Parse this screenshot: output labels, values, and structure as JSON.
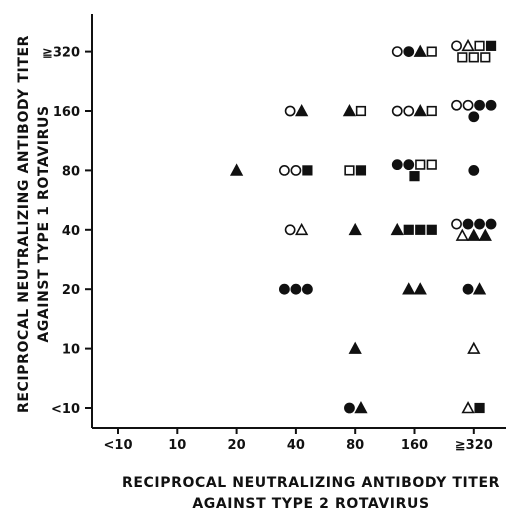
{
  "chart_data": {
    "type": "scatter",
    "title": "",
    "xlabel_lines": [
      "RECIPROCAL NEUTRALIZING ANTIBODY TITER",
      "AGAINST TYPE 2 ROTAVIRUS"
    ],
    "ylabel_lines": [
      "RECIPROCAL NEUTRALIZING ANTIBODY TITER",
      "AGAINST TYPE 1 ROTAVIRUS"
    ],
    "x_categories": [
      "<10",
      "10",
      "20",
      "40",
      "80",
      "160",
      "≧320"
    ],
    "y_categories": [
      "<10",
      "10",
      "20",
      "40",
      "80",
      "160",
      "≧320"
    ],
    "x_scale": "log2 ordinal (two-fold dilution steps)",
    "y_scale": "log2 ordinal (two-fold dilution steps)",
    "grid": false,
    "legend": "none",
    "marker_key": {
      "open-circle": "○",
      "filled-circle": "●",
      "open-triangle": "△",
      "filled-triangle": "▲",
      "open-square": "□",
      "filled-square": "■"
    },
    "points": [
      {
        "x": "20",
        "y": "80",
        "marker": "filled-triangle"
      },
      {
        "x": "40",
        "y": "160",
        "marker": "open-circle"
      },
      {
        "x": "40",
        "y": "160",
        "marker": "filled-triangle"
      },
      {
        "x": "40",
        "y": "80",
        "marker": "open-circle"
      },
      {
        "x": "40",
        "y": "80",
        "marker": "open-circle"
      },
      {
        "x": "40",
        "y": "80",
        "marker": "filled-square"
      },
      {
        "x": "40",
        "y": "40",
        "marker": "open-circle"
      },
      {
        "x": "40",
        "y": "40",
        "marker": "open-triangle"
      },
      {
        "x": "40",
        "y": "20",
        "marker": "filled-circle"
      },
      {
        "x": "40",
        "y": "20",
        "marker": "filled-circle"
      },
      {
        "x": "40",
        "y": "20",
        "marker": "filled-circle"
      },
      {
        "x": "80",
        "y": "160",
        "marker": "filled-triangle"
      },
      {
        "x": "80",
        "y": "160",
        "marker": "open-square"
      },
      {
        "x": "80",
        "y": "80",
        "marker": "open-square"
      },
      {
        "x": "80",
        "y": "80",
        "marker": "filled-square"
      },
      {
        "x": "80",
        "y": "40",
        "marker": "filled-triangle"
      },
      {
        "x": "80",
        "y": "10",
        "marker": "filled-triangle"
      },
      {
        "x": "80",
        "y": "<10",
        "marker": "filled-circle"
      },
      {
        "x": "80",
        "y": "<10",
        "marker": "filled-triangle"
      },
      {
        "x": "160",
        "y": "≧320",
        "marker": "open-circle"
      },
      {
        "x": "160",
        "y": "≧320",
        "marker": "filled-circle"
      },
      {
        "x": "160",
        "y": "≧320",
        "marker": "filled-triangle"
      },
      {
        "x": "160",
        "y": "≧320",
        "marker": "open-square"
      },
      {
        "x": "160",
        "y": "160",
        "marker": "open-circle"
      },
      {
        "x": "160",
        "y": "160",
        "marker": "open-circle"
      },
      {
        "x": "160",
        "y": "160",
        "marker": "filled-triangle"
      },
      {
        "x": "160",
        "y": "160",
        "marker": "open-square"
      },
      {
        "x": "160",
        "y": "80",
        "marker": "filled-circle"
      },
      {
        "x": "160",
        "y": "80",
        "marker": "filled-circle"
      },
      {
        "x": "160",
        "y": "80",
        "marker": "open-square"
      },
      {
        "x": "160",
        "y": "80",
        "marker": "open-square"
      },
      {
        "x": "160",
        "y": "80",
        "marker": "filled-square"
      },
      {
        "x": "160",
        "y": "40",
        "marker": "filled-triangle"
      },
      {
        "x": "160",
        "y": "40",
        "marker": "filled-square"
      },
      {
        "x": "160",
        "y": "40",
        "marker": "filled-square"
      },
      {
        "x": "160",
        "y": "40",
        "marker": "filled-square"
      },
      {
        "x": "160",
        "y": "20",
        "marker": "filled-triangle"
      },
      {
        "x": "160",
        "y": "20",
        "marker": "filled-triangle"
      },
      {
        "x": "≧320",
        "y": "≧320",
        "marker": "open-circle"
      },
      {
        "x": "≧320",
        "y": "≧320",
        "marker": "open-triangle"
      },
      {
        "x": "≧320",
        "y": "≧320",
        "marker": "open-square"
      },
      {
        "x": "≧320",
        "y": "≧320",
        "marker": "filled-square"
      },
      {
        "x": "≧320",
        "y": "≧320",
        "marker": "open-square"
      },
      {
        "x": "≧320",
        "y": "≧320",
        "marker": "open-square"
      },
      {
        "x": "≧320",
        "y": "≧320",
        "marker": "open-square"
      },
      {
        "x": "≧320",
        "y": "160",
        "marker": "open-circle"
      },
      {
        "x": "≧320",
        "y": "160",
        "marker": "open-circle"
      },
      {
        "x": "≧320",
        "y": "160",
        "marker": "filled-circle"
      },
      {
        "x": "≧320",
        "y": "160",
        "marker": "filled-circle"
      },
      {
        "x": "≧320",
        "y": "160",
        "marker": "filled-circle"
      },
      {
        "x": "≧320",
        "y": "80",
        "marker": "filled-circle"
      },
      {
        "x": "≧320",
        "y": "40",
        "marker": "open-circle"
      },
      {
        "x": "≧320",
        "y": "40",
        "marker": "filled-circle"
      },
      {
        "x": "≧320",
        "y": "40",
        "marker": "filled-circle"
      },
      {
        "x": "≧320",
        "y": "40",
        "marker": "filled-circle"
      },
      {
        "x": "≧320",
        "y": "40",
        "marker": "open-triangle"
      },
      {
        "x": "≧320",
        "y": "40",
        "marker": "filled-triangle"
      },
      {
        "x": "≧320",
        "y": "40",
        "marker": "filled-triangle"
      },
      {
        "x": "≧320",
        "y": "20",
        "marker": "filled-circle"
      },
      {
        "x": "≧320",
        "y": "20",
        "marker": "filled-triangle"
      },
      {
        "x": "≧320",
        "y": "10",
        "marker": "open-triangle"
      },
      {
        "x": "≧320",
        "y": "<10",
        "marker": "open-triangle"
      },
      {
        "x": "≧320",
        "y": "<10",
        "marker": "filled-square"
      }
    ]
  }
}
